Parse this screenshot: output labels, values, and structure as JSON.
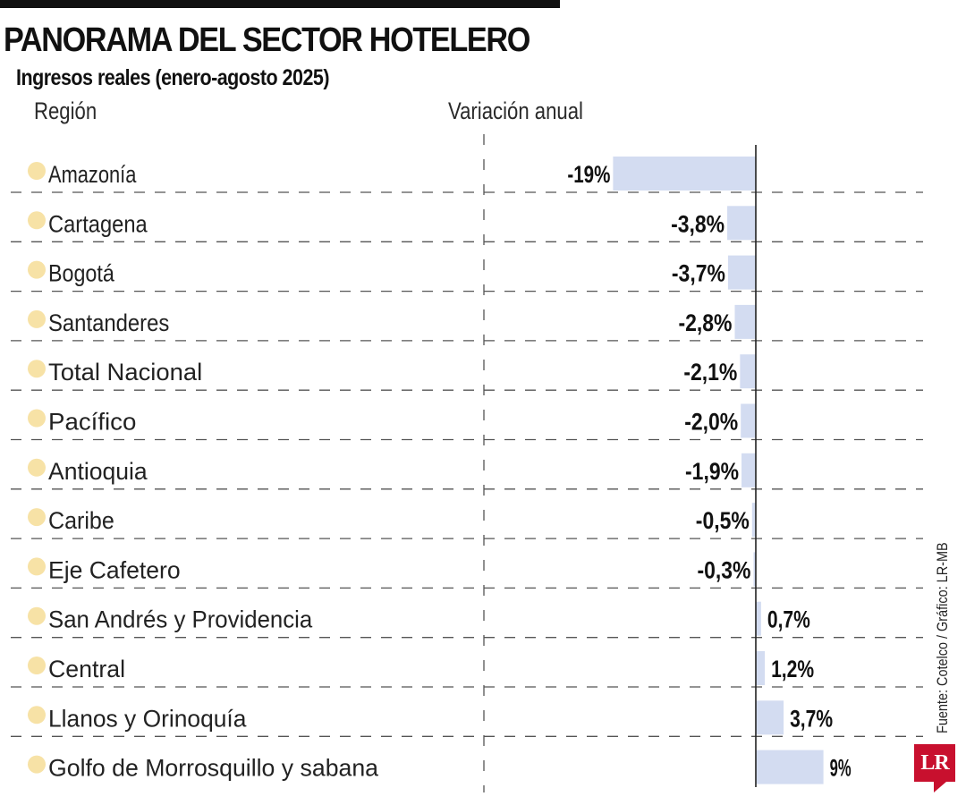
{
  "chart_data": {
    "type": "bar",
    "orientation": "horizontal",
    "title": "PANORAMA DEL SECTOR HOTELERO",
    "subtitle": "Ingresos reales (enero-agosto 2025)",
    "category_header": "Región",
    "value_header": "Variación anual",
    "categories": [
      "Amazonía",
      "Cartagena",
      "Bogotá",
      "Santanderes",
      "Total Nacional",
      "Pacífico",
      "Antioquia",
      "Caribe",
      "Eje Cafetero",
      "San Andrés y Providencia",
      "Central",
      "Llanos y Orinoquía",
      "Golfo de Morrosquillo y sabana"
    ],
    "values": [
      -19,
      -3.8,
      -3.7,
      -2.8,
      -2.1,
      -2.0,
      -1.9,
      -0.5,
      -0.3,
      0.7,
      1.2,
      3.7,
      9
    ],
    "value_labels": [
      "-19%",
      "-3,8%",
      "-3,7%",
      "-2,8%",
      "-2,1%",
      "-2,0%",
      "-1,9%",
      "-0,5%",
      "-0,3%",
      "0,7%",
      "1,2%",
      "3,7%",
      "9%"
    ],
    "unit": "%",
    "xlim": [
      -19,
      9
    ],
    "grid": true,
    "source": "Fuente: Cotelco / Gráfico: LR-MB"
  },
  "colors": {
    "bar": "#d3dcf1",
    "bullet": "#f7e2a6",
    "axis": "#222222",
    "grid": "#555555",
    "logo": "#c8102e"
  },
  "logo_text": "LR"
}
